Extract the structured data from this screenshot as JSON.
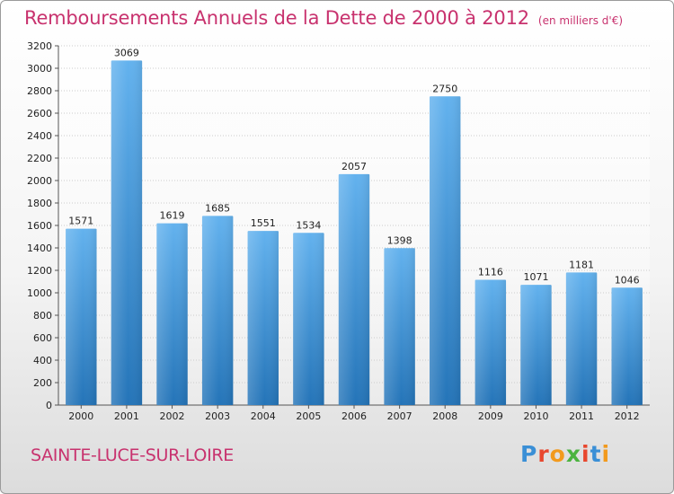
{
  "header": {
    "title": "Remboursements Annuels de la Dette de 2000 à 2012",
    "unit": "(en milliers d'€)"
  },
  "footer": {
    "city": "SAINTE-LUCE-SUR-LOIRE",
    "logo_text": "Proxiti"
  },
  "colors": {
    "title": "#c8326e",
    "bar_top": "#63b2ee",
    "bar_bottom": "#2474b8",
    "grid": "#cccccc"
  },
  "chart_data": {
    "type": "bar",
    "title": "Remboursements Annuels de la Dette de 2000 à 2012",
    "xlabel": "",
    "ylabel": "",
    "categories": [
      "2000",
      "2001",
      "2002",
      "2003",
      "2004",
      "2005",
      "2006",
      "2007",
      "2008",
      "2009",
      "2010",
      "2011",
      "2012"
    ],
    "values": [
      1571,
      3069,
      1619,
      1685,
      1551,
      1534,
      2057,
      1398,
      2750,
      1116,
      1071,
      1181,
      1046
    ],
    "ylim": [
      0,
      3200
    ],
    "ytick_step": 200,
    "grid": true,
    "legend": "none"
  }
}
